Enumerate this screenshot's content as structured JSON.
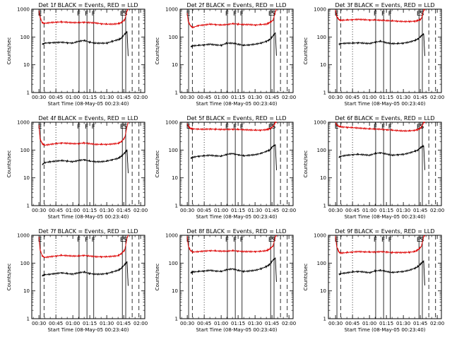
{
  "colors": {
    "events": "#000000",
    "lld": "#dd0000",
    "axes": "#000000",
    "background": "#ffffff"
  },
  "shared": {
    "xlabel": "Start Time (08-May-05 00:23:40)",
    "ylabel": "Counts/sec",
    "xticks": [
      "00:30",
      "00:45",
      "01:00",
      "01:15",
      "01:30",
      "01:45",
      "02:00"
    ],
    "yticks": [
      "1",
      "10",
      "100",
      "1000"
    ],
    "markers": [
      "E",
      "F",
      "F",
      "F",
      "E",
      "S"
    ]
  },
  "chart_data": [
    {
      "type": "line",
      "title": "Det 1f BLACK = Events, RED = LLD",
      "xlabel": "Start Time (08-May-05 00:23:40)",
      "ylabel": "Counts/sec",
      "xlim": [
        "00:23:40",
        "02:03:40"
      ],
      "ylim": [
        1,
        1000
      ],
      "yscale": "log",
      "x_minutes_from_0030": [
        0,
        1,
        3,
        5,
        10,
        15,
        20,
        25,
        30,
        35,
        40,
        45,
        50,
        55,
        60,
        65,
        70,
        73,
        76,
        78,
        79
      ],
      "series": [
        {
          "name": "RED = LLD",
          "color": "#dd0000",
          "values": [
            900,
            500,
            330,
            310,
            330,
            340,
            350,
            340,
            330,
            330,
            340,
            330,
            320,
            300,
            290,
            290,
            300,
            330,
            420,
            900,
            1000
          ]
        },
        {
          "name": "BLACK = Events",
          "color": "#000000",
          "values": [
            null,
            null,
            55,
            60,
            62,
            63,
            65,
            62,
            60,
            70,
            75,
            65,
            60,
            60,
            60,
            70,
            80,
            90,
            130,
            150,
            20
          ]
        }
      ]
    },
    {
      "type": "line",
      "title": "Det 2f BLACK = Events, RED = LLD",
      "xlabel": "Start Time (08-May-05 00:23:40)",
      "ylabel": "Counts/sec",
      "xlim": [
        "00:23:40",
        "02:03:40"
      ],
      "ylim": [
        1,
        1000
      ],
      "yscale": "log",
      "x_minutes_from_0030": [
        0,
        1,
        3,
        5,
        10,
        15,
        20,
        25,
        30,
        35,
        40,
        45,
        50,
        55,
        60,
        65,
        70,
        73,
        76,
        78,
        79
      ],
      "series": [
        {
          "name": "RED = LLD",
          "color": "#dd0000",
          "values": [
            700,
            350,
            250,
            220,
            260,
            270,
            290,
            280,
            270,
            280,
            300,
            290,
            280,
            280,
            270,
            280,
            290,
            330,
            400,
            800,
            1000
          ]
        },
        {
          "name": "BLACK = Events",
          "color": "#000000",
          "values": [
            null,
            null,
            45,
            48,
            50,
            52,
            55,
            52,
            50,
            60,
            60,
            55,
            50,
            52,
            55,
            60,
            70,
            80,
            110,
            140,
            20
          ]
        }
      ]
    },
    {
      "type": "line",
      "title": "Det 3f BLACK = Events, RED = LLD",
      "xlabel": "Start Time (08-May-05 00:23:40)",
      "ylabel": "Counts/sec",
      "xlim": [
        "00:23:40",
        "02:03:40"
      ],
      "ylim": [
        1,
        1000
      ],
      "yscale": "log",
      "x_minutes_from_0030": [
        0,
        1,
        3,
        5,
        10,
        15,
        20,
        25,
        30,
        35,
        40,
        45,
        50,
        55,
        60,
        65,
        70,
        73,
        76,
        78,
        79
      ],
      "series": [
        {
          "name": "RED = LLD",
          "color": "#dd0000",
          "values": [
            900,
            550,
            420,
            400,
            410,
            420,
            430,
            420,
            410,
            410,
            400,
            390,
            380,
            370,
            360,
            360,
            370,
            390,
            450,
            900,
            1000
          ]
        },
        {
          "name": "BLACK = Events",
          "color": "#000000",
          "values": [
            null,
            null,
            55,
            58,
            60,
            60,
            62,
            60,
            58,
            65,
            70,
            62,
            58,
            58,
            60,
            65,
            75,
            85,
            110,
            130,
            20
          ]
        }
      ]
    },
    {
      "type": "line",
      "title": "Det 4f BLACK = Events, RED = LLD",
      "xlabel": "Start Time (08-May-05 00:23:40)",
      "ylabel": "Counts/sec",
      "xlim": [
        "00:23:40",
        "02:03:40"
      ],
      "ylim": [
        1,
        1000
      ],
      "yscale": "log",
      "x_minutes_from_0030": [
        0,
        1,
        3,
        5,
        10,
        15,
        20,
        25,
        30,
        35,
        40,
        45,
        50,
        55,
        60,
        65,
        70,
        73,
        76,
        78,
        79
      ],
      "series": [
        {
          "name": "RED = LLD",
          "color": "#dd0000",
          "values": [
            800,
            250,
            170,
            150,
            160,
            170,
            180,
            175,
            170,
            170,
            180,
            170,
            160,
            160,
            160,
            165,
            175,
            200,
            280,
            700,
            1000
          ]
        },
        {
          "name": "BLACK = Events",
          "color": "#000000",
          "values": [
            null,
            null,
            30,
            35,
            38,
            40,
            42,
            40,
            38,
            42,
            45,
            40,
            38,
            38,
            40,
            45,
            50,
            60,
            80,
            100,
            15
          ]
        }
      ]
    },
    {
      "type": "line",
      "title": "Det 5f BLACK = Events, RED = LLD",
      "xlabel": "Start Time (08-May-05 00:23:40)",
      "ylabel": "Counts/sec",
      "xlim": [
        "00:23:40",
        "02:03:40"
      ],
      "ylim": [
        1,
        1000
      ],
      "yscale": "log",
      "x_minutes_from_0030": [
        0,
        1,
        3,
        5,
        10,
        15,
        20,
        25,
        30,
        35,
        40,
        45,
        50,
        55,
        60,
        65,
        70,
        73,
        76,
        78,
        79
      ],
      "series": [
        {
          "name": "RED = LLD",
          "color": "#dd0000",
          "values": [
            900,
            700,
            600,
            580,
            560,
            560,
            570,
            560,
            550,
            550,
            560,
            550,
            540,
            530,
            520,
            520,
            540,
            580,
            700,
            1000,
            1000
          ]
        },
        {
          "name": "BLACK = Events",
          "color": "#000000",
          "values": [
            null,
            null,
            50,
            55,
            60,
            62,
            65,
            62,
            60,
            70,
            75,
            68,
            62,
            65,
            68,
            75,
            90,
            100,
            140,
            150,
            20
          ]
        }
      ]
    },
    {
      "type": "line",
      "title": "Det 6f BLACK = Events, RED = LLD",
      "xlabel": "Start Time (08-May-05 00:23:40)",
      "ylabel": "Counts/sec",
      "xlim": [
        "00:23:40",
        "02:03:40"
      ],
      "ylim": [
        1,
        1000
      ],
      "yscale": "log",
      "x_minutes_from_0030": [
        0,
        1,
        3,
        5,
        10,
        15,
        20,
        25,
        30,
        35,
        40,
        45,
        50,
        55,
        60,
        65,
        70,
        73,
        76,
        78,
        79
      ],
      "series": [
        {
          "name": "RED = LLD",
          "color": "#dd0000",
          "values": [
            1000,
            800,
            700,
            680,
            660,
            640,
            620,
            600,
            580,
            570,
            560,
            540,
            520,
            500,
            490,
            490,
            510,
            550,
            650,
            1000,
            1000
          ]
        },
        {
          "name": "BLACK = Events",
          "color": "#000000",
          "values": [
            null,
            null,
            55,
            60,
            65,
            68,
            70,
            68,
            65,
            75,
            80,
            72,
            65,
            68,
            70,
            78,
            90,
            100,
            130,
            140,
            20
          ]
        }
      ]
    },
    {
      "type": "line",
      "title": "Det 7f BLACK = Events, RED = LLD",
      "xlabel": "Start Time (08-May-05 00:23:40)",
      "ylabel": "Counts/sec",
      "xlim": [
        "00:23:40",
        "02:03:40"
      ],
      "ylim": [
        1,
        1000
      ],
      "yscale": "log",
      "x_minutes_from_0030": [
        0,
        1,
        3,
        5,
        10,
        15,
        20,
        25,
        30,
        35,
        40,
        45,
        50,
        55,
        60,
        65,
        70,
        73,
        76,
        78,
        79
      ],
      "series": [
        {
          "name": "RED = LLD",
          "color": "#dd0000",
          "values": [
            900,
            300,
            180,
            160,
            170,
            180,
            190,
            185,
            180,
            180,
            190,
            180,
            170,
            170,
            170,
            175,
            185,
            220,
            300,
            800,
            1000
          ]
        },
        {
          "name": "BLACK = Events",
          "color": "#000000",
          "values": [
            null,
            null,
            35,
            38,
            40,
            42,
            45,
            42,
            40,
            45,
            48,
            42,
            40,
            40,
            42,
            48,
            55,
            65,
            90,
            110,
            15
          ]
        }
      ]
    },
    {
      "type": "line",
      "title": "Det 8f BLACK = Events, RED = LLD",
      "xlabel": "Start Time (08-May-05 00:23:40)",
      "ylabel": "Counts/sec",
      "xlim": [
        "00:23:40",
        "02:03:40"
      ],
      "ylim": [
        1,
        1000
      ],
      "yscale": "log",
      "x_minutes_from_0030": [
        0,
        1,
        3,
        5,
        10,
        15,
        20,
        25,
        30,
        35,
        40,
        45,
        50,
        55,
        60,
        65,
        70,
        73,
        76,
        78,
        79
      ],
      "series": [
        {
          "name": "RED = LLD",
          "color": "#dd0000",
          "values": [
            900,
            400,
            280,
            250,
            260,
            270,
            280,
            275,
            270,
            270,
            280,
            270,
            260,
            260,
            260,
            265,
            280,
            320,
            420,
            900,
            1000
          ]
        },
        {
          "name": "BLACK = Events",
          "color": "#000000",
          "values": [
            null,
            null,
            45,
            48,
            50,
            52,
            55,
            52,
            50,
            58,
            62,
            55,
            50,
            52,
            55,
            62,
            75,
            90,
            130,
            150,
            20
          ]
        }
      ]
    },
    {
      "type": "line",
      "title": "Det 9f BLACK = Events, RED = LLD",
      "xlabel": "Start Time (08-May-05 00:23:40)",
      "ylabel": "Counts/sec",
      "xlim": [
        "00:23:40",
        "02:03:40"
      ],
      "ylim": [
        1,
        1000
      ],
      "yscale": "log",
      "x_minutes_from_0030": [
        0,
        1,
        3,
        5,
        10,
        15,
        20,
        25,
        30,
        35,
        40,
        45,
        50,
        55,
        60,
        65,
        70,
        73,
        76,
        78,
        79
      ],
      "series": [
        {
          "name": "RED = LLD",
          "color": "#dd0000",
          "values": [
            900,
            400,
            250,
            230,
            240,
            250,
            260,
            255,
            250,
            250,
            260,
            250,
            240,
            240,
            240,
            245,
            260,
            300,
            400,
            900,
            1000
          ]
        },
        {
          "name": "BLACK = Events",
          "color": "#000000",
          "values": [
            null,
            null,
            40,
            42,
            45,
            48,
            50,
            48,
            45,
            52,
            55,
            50,
            46,
            48,
            50,
            55,
            65,
            75,
            100,
            120,
            15
          ]
        }
      ]
    }
  ]
}
